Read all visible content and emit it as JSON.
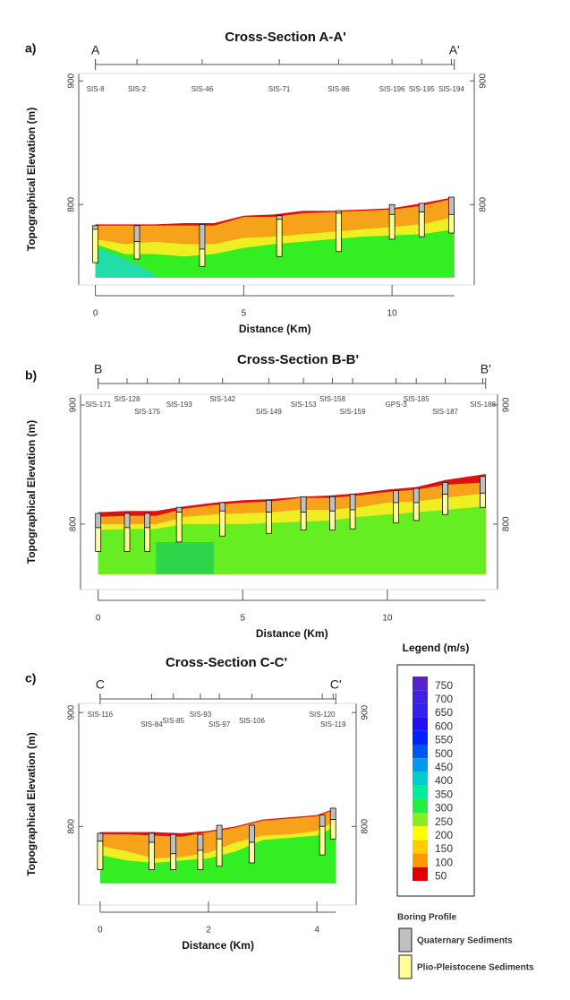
{
  "chart_data": [
    {
      "type": "cross-section",
      "panel": "a)",
      "title": "Cross-Section A-A'",
      "section_start": "A",
      "section_end": "A'",
      "xlabel": "Distance (Km)",
      "ylabel": "Topographical Elevation (m)",
      "xlim": [
        -0.26,
        12.47
      ],
      "ylim": [
        735,
        906
      ],
      "xticks": [
        0,
        5,
        10
      ],
      "yticks": [
        800,
        900
      ],
      "base": 741,
      "profile_x": [
        0,
        1,
        2,
        3,
        4,
        5,
        6,
        7,
        8,
        9,
        10,
        11,
        12.1
      ],
      "layers": [
        {
          "color": "#dd1111",
          "top": [
            784,
            784,
            784,
            785,
            785,
            791,
            792,
            795,
            795,
            796,
            797,
            801,
            806
          ]
        },
        {
          "color": "#f6a21a",
          "top": [
            783,
            783,
            783,
            783,
            783,
            790,
            790,
            793,
            794,
            795,
            796,
            799,
            805
          ]
        },
        {
          "color": "#eeee22",
          "top": [
            772,
            768,
            770,
            768,
            768,
            773,
            774,
            776,
            778,
            780,
            782,
            784,
            790
          ]
        },
        {
          "color": "#33ee22",
          "top": [
            768,
            760,
            760,
            758,
            760,
            765,
            768,
            770,
            772,
            774,
            775,
            776,
            780
          ]
        },
        {
          "color": "#22ddaa",
          "top": [
            766,
            756,
            744,
            null,
            null,
            null,
            null,
            null,
            null,
            null,
            null,
            null,
            null
          ]
        }
      ],
      "borings": [
        {
          "name": "SIS-8",
          "x": 0,
          "top": 783,
          "quaternary_bottom": 780,
          "bottom": 753
        },
        {
          "name": "SIS-2",
          "x": 1.4,
          "top": 783,
          "quaternary_bottom": 770,
          "bottom": 756
        },
        {
          "name": "SIS-46",
          "x": 3.6,
          "top": 784,
          "quaternary_bottom": 764,
          "bottom": 750
        },
        {
          "name": "SIS-71",
          "x": 6.2,
          "top": 791,
          "quaternary_bottom": 788,
          "bottom": 758
        },
        {
          "name": "SIS-86",
          "x": 8.2,
          "top": 795,
          "quaternary_bottom": 793,
          "bottom": 762
        },
        {
          "name": "SIS-196",
          "x": 10,
          "top": 800,
          "quaternary_bottom": 792,
          "bottom": 772
        },
        {
          "name": "SIS-195",
          "x": 11,
          "top": 801,
          "quaternary_bottom": 794,
          "bottom": 774
        },
        {
          "name": "SIS-194",
          "x": 12,
          "top": 806,
          "quaternary_bottom": 792,
          "bottom": 777
        }
      ]
    },
    {
      "type": "cross-section",
      "panel": "b)",
      "title": "Cross-Section B-B'",
      "section_start": "B",
      "section_end": "B'",
      "xlabel": "Distance (Km)",
      "ylabel": "Topographical Elevation (m)",
      "xlim": [
        -0.3,
        13.5
      ],
      "ylim": [
        745,
        909
      ],
      "xticks": [
        0,
        5,
        10
      ],
      "yticks": [
        800,
        900
      ],
      "base": 758,
      "profile_x": [
        0,
        1,
        2,
        3,
        4,
        5,
        6,
        7,
        8,
        9,
        10,
        11,
        12,
        13.4
      ],
      "layers": [
        {
          "color": "#dd1111",
          "top": [
            810,
            811,
            811,
            815,
            818,
            820,
            821,
            823,
            824,
            826,
            829,
            831,
            837,
            842
          ]
        },
        {
          "color": "#f6a21a",
          "top": [
            806,
            807,
            807,
            813,
            816,
            818,
            819,
            822,
            822,
            824,
            827,
            829,
            833,
            835
          ]
        },
        {
          "color": "#eeee22",
          "top": [
            800,
            800,
            800,
            806,
            808,
            809,
            810,
            812,
            812,
            814,
            818,
            819,
            822,
            826
          ]
        },
        {
          "color": "#66ee22",
          "top": [
            795,
            796,
            796,
            800,
            800,
            800,
            801,
            802,
            803,
            806,
            808,
            810,
            812,
            815
          ]
        },
        {
          "color": "#2ed54a",
          "top": [
            null,
            null,
            785,
            785,
            785,
            null,
            null,
            null,
            null,
            null,
            null,
            null,
            null,
            null
          ]
        }
      ],
      "borings": [
        {
          "name": "SIS-171",
          "x": 0,
          "top": 809,
          "quaternary_bottom": 797,
          "bottom": 777
        },
        {
          "name": "SIS-128",
          "x": 1,
          "top": 809,
          "quaternary_bottom": 797,
          "bottom": 777
        },
        {
          "name": "SIS-175",
          "x": 1.7,
          "top": 809,
          "quaternary_bottom": 797,
          "bottom": 777
        },
        {
          "name": "SIS-193",
          "x": 2.8,
          "top": 814,
          "quaternary_bottom": 810,
          "bottom": 785
        },
        {
          "name": "SIS-142",
          "x": 4.3,
          "top": 818,
          "quaternary_bottom": 811,
          "bottom": 790
        },
        {
          "name": "SIS-149",
          "x": 5.9,
          "top": 820,
          "quaternary_bottom": 810,
          "bottom": 792
        },
        {
          "name": "SIS-153",
          "x": 7.1,
          "top": 823,
          "quaternary_bottom": 810,
          "bottom": 795
        },
        {
          "name": "SIS-158",
          "x": 8.1,
          "top": 823,
          "quaternary_bottom": 811,
          "bottom": 795
        },
        {
          "name": "SIS-159",
          "x": 8.8,
          "top": 825,
          "quaternary_bottom": 812,
          "bottom": 796
        },
        {
          "name": "GPS-3",
          "x": 10.3,
          "top": 828,
          "quaternary_bottom": 818,
          "bottom": 801
        },
        {
          "name": "SIS-185",
          "x": 11,
          "top": 830,
          "quaternary_bottom": 818,
          "bottom": 803
        },
        {
          "name": "SIS-187",
          "x": 12,
          "top": 835,
          "quaternary_bottom": 825,
          "bottom": 808
        },
        {
          "name": "SIS-188",
          "x": 13.3,
          "top": 840,
          "quaternary_bottom": 826,
          "bottom": 814
        }
      ]
    },
    {
      "type": "cross-section",
      "panel": "c)",
      "title": "Cross-Section C-C'",
      "section_start": "C",
      "section_end": "C'",
      "xlabel": "Distance (Km)",
      "ylabel": "Topographical Elevation (m)",
      "xlim": [
        -0.23,
        4.56
      ],
      "ylim": [
        731,
        908
      ],
      "xticks": [
        0,
        2,
        4
      ],
      "yticks": [
        800,
        900
      ],
      "base": 750,
      "profile_x": [
        0,
        0.5,
        1,
        1.5,
        2,
        2.5,
        3,
        3.5,
        4,
        4.35
      ],
      "layers": [
        {
          "color": "#dd1111",
          "top": [
            795,
            795,
            795,
            794,
            796,
            800,
            806,
            808,
            810,
            816
          ]
        },
        {
          "color": "#f6a21a",
          "top": [
            793,
            793,
            792,
            791,
            795,
            799,
            805,
            807,
            809,
            815
          ]
        },
        {
          "color": "#eeee22",
          "top": [
            783,
            778,
            772,
            773,
            777,
            786,
            792,
            793,
            796,
            805
          ]
        },
        {
          "color": "#33ee22",
          "top": [
            775,
            770,
            768,
            770,
            772,
            778,
            788,
            790,
            792,
            800
          ]
        }
      ],
      "borings": [
        {
          "name": "SIS-116",
          "x": 0,
          "top": 794,
          "quaternary_bottom": 787,
          "bottom": 762
        },
        {
          "name": "SIS-84",
          "x": 0.95,
          "top": 794,
          "quaternary_bottom": 786,
          "bottom": 762
        },
        {
          "name": "SIS-85",
          "x": 1.35,
          "top": 793,
          "quaternary_bottom": 776,
          "bottom": 762
        },
        {
          "name": "SIS-93",
          "x": 1.85,
          "top": 793,
          "quaternary_bottom": 779,
          "bottom": 762
        },
        {
          "name": "SIS-97",
          "x": 2.2,
          "top": 801,
          "quaternary_bottom": 789,
          "bottom": 765
        },
        {
          "name": "SIS-106",
          "x": 2.8,
          "top": 801,
          "quaternary_bottom": 786,
          "bottom": 768
        },
        {
          "name": "SIS-120",
          "x": 4.1,
          "top": 810,
          "quaternary_bottom": 800,
          "bottom": 775
        },
        {
          "name": "SIS-119",
          "x": 4.3,
          "top": 816,
          "quaternary_bottom": 806,
          "bottom": 789
        }
      ]
    }
  ],
  "legend": {
    "title": "Legend (m/s)",
    "items": [
      {
        "value": 750,
        "color": "#5522cc"
      },
      {
        "value": 700,
        "color": "#4422dd"
      },
      {
        "value": 650,
        "color": "#3322ee"
      },
      {
        "value": 600,
        "color": "#2211ee"
      },
      {
        "value": 550,
        "color": "#0022ff"
      },
      {
        "value": 500,
        "color": "#0055ee"
      },
      {
        "value": 450,
        "color": "#0099ee"
      },
      {
        "value": 400,
        "color": "#00cccc"
      },
      {
        "value": 350,
        "color": "#00ee99"
      },
      {
        "value": 300,
        "color": "#22ee44"
      },
      {
        "value": 250,
        "color": "#88ee22"
      },
      {
        "value": 200,
        "color": "#ffff00"
      },
      {
        "value": 150,
        "color": "#ffcc00"
      },
      {
        "value": 100,
        "color": "#ff9900"
      },
      {
        "value": 50,
        "color": "#dd0000"
      }
    ]
  },
  "boring_profile": {
    "title": "Boring Profile",
    "items": [
      {
        "label": "Quaternary Sediments",
        "color": "#c0c0c0"
      },
      {
        "label": "Plio-Pleistocene Sediments",
        "color": "#ffff99"
      }
    ]
  }
}
